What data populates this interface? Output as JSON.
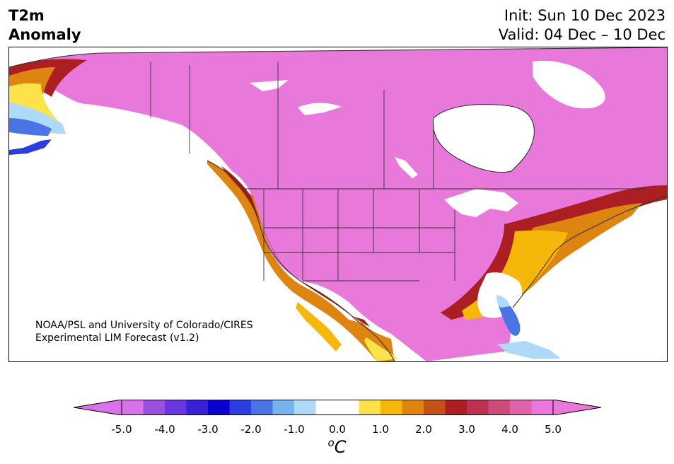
{
  "header": {
    "title_line1": "T2m",
    "title_line2": "Anomaly",
    "init": "Init: Sun 10 Dec 2023",
    "valid": "Valid: 04 Dec – 10 Dec"
  },
  "map": {
    "region": "North America",
    "credit_line1": "NOAA/PSL and University of Colorado/CIRES",
    "credit_line2": "Experimental LIM Forecast (v1.2)"
  },
  "colorbar": {
    "unit_base": "C",
    "unit_sup": "o",
    "tick_labels": [
      "-5.0",
      "-4.0",
      "-3.0",
      "-2.0",
      "-1.0",
      "0.0",
      "1.0",
      "2.0",
      "3.0",
      "4.0",
      "5.0"
    ],
    "bin_colors": [
      "#d772e8",
      "#9b4fe0",
      "#6a35dc",
      "#3a1fd6",
      "#0b00d2",
      "#2a3edc",
      "#4a74e6",
      "#74b2f0",
      "#aed9f8",
      "#ffffff",
      "#ffffff",
      "#fde24c",
      "#f4b70a",
      "#de8410",
      "#c45216",
      "#ab1e22",
      "#be3251",
      "#cd4a7c",
      "#dd63ad",
      "#e878da"
    ],
    "extend_low_color": "#d772e8",
    "extend_high_color": "#e878da"
  },
  "legend_colors": {
    "max_warm": "#e878da",
    "warm_4": "#dd63ad",
    "warm_3": "#be3251",
    "warm_2": "#ab1e22",
    "orange": "#de8410",
    "yellow": "#f4b70a",
    "neutral": "#ffffff",
    "cool_1": "#aed9f8",
    "cool_2": "#4a74e6",
    "cool_3": "#2a3edc"
  }
}
